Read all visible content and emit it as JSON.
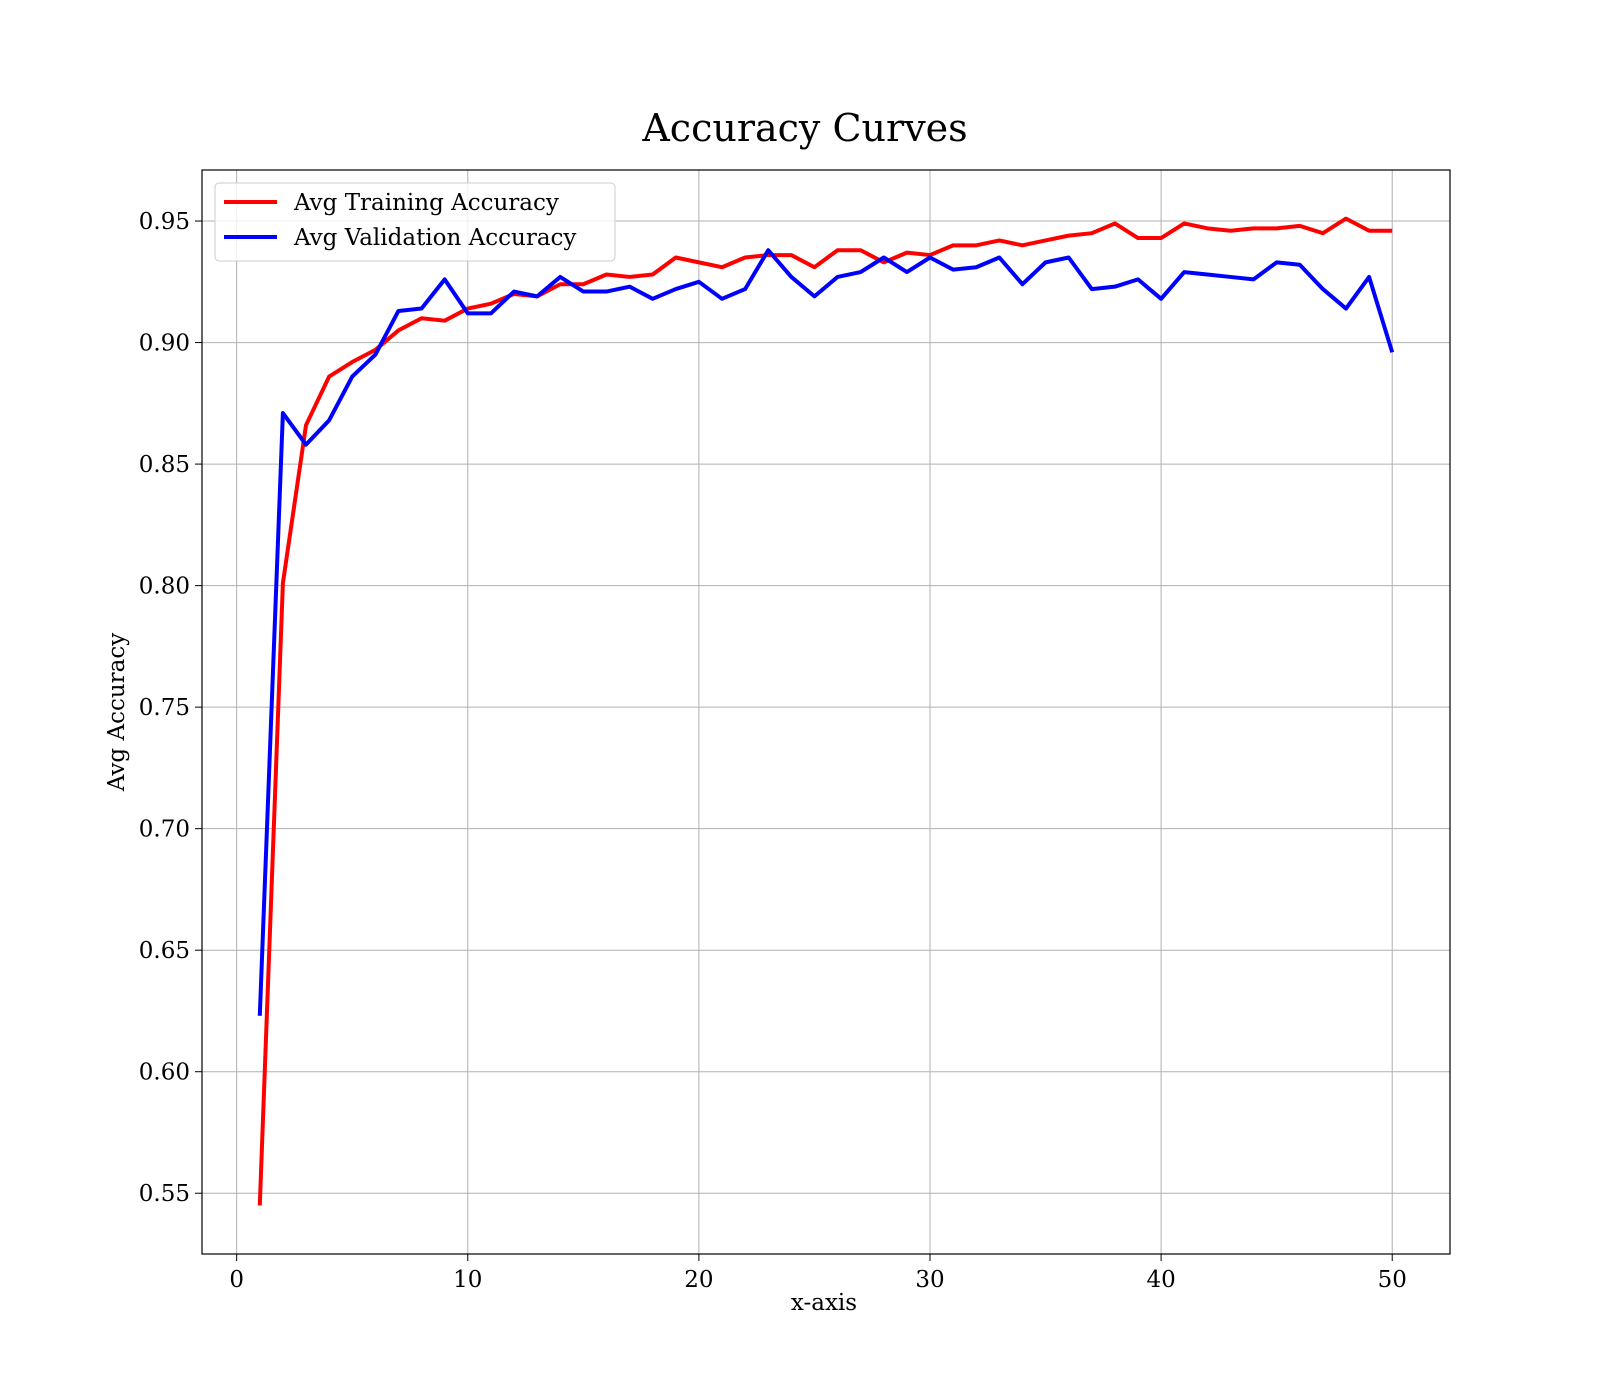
{
  "chart_data": {
    "type": "line",
    "title": "Accuracy Curves",
    "xlabel": "x-axis",
    "ylabel": "Avg Accuracy",
    "xlim": [
      -1.5,
      52.5
    ],
    "ylim": [
      0.525,
      0.971
    ],
    "xticks": [
      0,
      10,
      20,
      30,
      40,
      50
    ],
    "yticks": [
      0.55,
      0.6,
      0.65,
      0.7,
      0.75,
      0.8,
      0.85,
      0.9,
      0.95
    ],
    "xtick_labels": [
      "0",
      "10",
      "20",
      "30",
      "40",
      "50"
    ],
    "ytick_labels": [
      "0.55",
      "0.60",
      "0.65",
      "0.70",
      "0.75",
      "0.80",
      "0.85",
      "0.90",
      "0.95"
    ],
    "grid": true,
    "legend_position": "top-left",
    "x": [
      1,
      2,
      3,
      4,
      5,
      6,
      7,
      8,
      9,
      10,
      11,
      12,
      13,
      14,
      15,
      16,
      17,
      18,
      19,
      20,
      21,
      22,
      23,
      24,
      25,
      26,
      27,
      28,
      29,
      30,
      31,
      32,
      33,
      34,
      35,
      36,
      37,
      38,
      39,
      40,
      41,
      42,
      43,
      44,
      45,
      46,
      47,
      48,
      49,
      50
    ],
    "series": [
      {
        "name": "Avg Training Accuracy",
        "color": "#ff0000",
        "values": [
          0.545,
          0.801,
          0.866,
          0.886,
          0.892,
          0.897,
          0.905,
          0.91,
          0.909,
          0.914,
          0.916,
          0.92,
          0.919,
          0.924,
          0.924,
          0.928,
          0.927,
          0.928,
          0.935,
          0.933,
          0.931,
          0.935,
          0.936,
          0.936,
          0.931,
          0.938,
          0.938,
          0.933,
          0.937,
          0.936,
          0.94,
          0.94,
          0.942,
          0.94,
          0.942,
          0.944,
          0.945,
          0.949,
          0.943,
          0.943,
          0.949,
          0.947,
          0.946,
          0.947,
          0.947,
          0.948,
          0.945,
          0.951,
          0.946,
          0.946
        ]
      },
      {
        "name": "Avg Validation Accuracy",
        "color": "#0000ff",
        "values": [
          0.623,
          0.871,
          0.858,
          0.868,
          0.886,
          0.895,
          0.913,
          0.914,
          0.926,
          0.912,
          0.912,
          0.921,
          0.919,
          0.927,
          0.921,
          0.921,
          0.923,
          0.918,
          0.922,
          0.925,
          0.918,
          0.922,
          0.938,
          0.927,
          0.919,
          0.927,
          0.929,
          0.935,
          0.929,
          0.935,
          0.93,
          0.931,
          0.935,
          0.924,
          0.933,
          0.935,
          0.922,
          0.923,
          0.926,
          0.918,
          0.929,
          0.928,
          0.927,
          0.926,
          0.933,
          0.932,
          0.922,
          0.914,
          0.927,
          0.896
        ]
      }
    ]
  }
}
